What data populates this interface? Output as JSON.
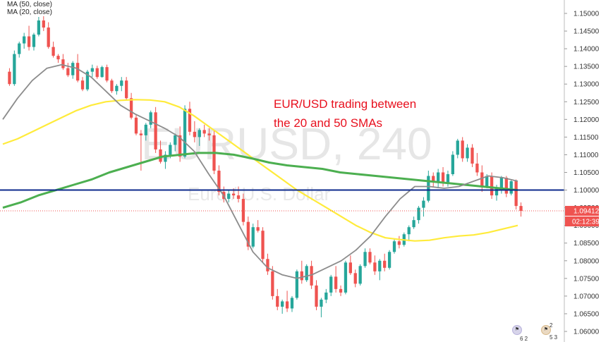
{
  "indicators": {
    "ma50_label": "MA (50, close)",
    "ma20_label": "MA (20, close)"
  },
  "annotation": {
    "line1": "EUR/USD trading between",
    "line2": "the 20 and 50 SMAs"
  },
  "watermark": {
    "symbol": "EURUSD, 240",
    "description": "Euro / U.S. Dollar"
  },
  "badges": {
    "price": "1.09412",
    "countdown": "02:12:39"
  },
  "events": [
    {
      "icon": "flag-icon",
      "count": "2"
    },
    {
      "icon": "flag-icon",
      "count": "6 2"
    },
    {
      "icon": "flag-icon",
      "count": "5 3"
    }
  ],
  "colors": {
    "bull": "#26a69a",
    "bear": "#ef5350",
    "ma20": "#8c8c8c",
    "ma50": "#4caf50",
    "ma_yellow": "#ffeb3b",
    "level_line": "#0d2a8c",
    "price_badge": "#ef5350",
    "countdown_badge": "#ef5350",
    "annotation": "#e8101e"
  },
  "chart_data": {
    "type": "candlestick",
    "symbol": "EURUSD",
    "timeframe": "240",
    "ylim": [
      1.0575,
      1.1535
    ],
    "y_ticks": [
      "1.15000",
      "1.14500",
      "1.14000",
      "1.13500",
      "1.13000",
      "1.12500",
      "1.12000",
      "1.11500",
      "1.11000",
      "1.10500",
      "1.10000",
      "1.09500",
      "1.09000",
      "1.08500",
      "1.08000",
      "1.07500",
      "1.07000",
      "1.06500",
      "1.06000"
    ],
    "grid": false,
    "horizontal_level": 1.1,
    "last_price": 1.09412,
    "ohlc": [
      [
        1.1335,
        1.1345,
        1.1295,
        1.13
      ],
      [
        1.13,
        1.1395,
        1.1295,
        1.1385
      ],
      [
        1.1385,
        1.142,
        1.1375,
        1.1415
      ],
      [
        1.1415,
        1.1445,
        1.14,
        1.1435
      ],
      [
        1.1435,
        1.1465,
        1.1395,
        1.1405
      ],
      [
        1.1405,
        1.1445,
        1.1395,
        1.144
      ],
      [
        1.144,
        1.149,
        1.1435,
        1.148
      ],
      [
        1.148,
        1.1492,
        1.145,
        1.146
      ],
      [
        1.146,
        1.1475,
        1.14,
        1.1405
      ],
      [
        1.1405,
        1.142,
        1.1375,
        1.138
      ],
      [
        1.138,
        1.1385,
        1.136,
        1.137
      ],
      [
        1.137,
        1.1385,
        1.134,
        1.1345
      ],
      [
        1.1345,
        1.136,
        1.132,
        1.1325
      ],
      [
        1.1325,
        1.1365,
        1.1315,
        1.136
      ],
      [
        1.136,
        1.1385,
        1.1305,
        1.131
      ],
      [
        1.131,
        1.132,
        1.128,
        1.1285
      ],
      [
        1.1285,
        1.134,
        1.128,
        1.1335
      ],
      [
        1.1335,
        1.1355,
        1.132,
        1.1345
      ],
      [
        1.1345,
        1.1352,
        1.1315,
        1.132
      ],
      [
        1.132,
        1.1352,
        1.1318,
        1.1348
      ],
      [
        1.1348,
        1.1355,
        1.1305,
        1.131
      ],
      [
        1.131,
        1.1315,
        1.1275,
        1.128
      ],
      [
        1.128,
        1.13,
        1.127,
        1.1295
      ],
      [
        1.1295,
        1.132,
        1.128,
        1.131
      ],
      [
        1.131,
        1.132,
        1.1255,
        1.126
      ],
      [
        1.126,
        1.1275,
        1.12,
        1.1205
      ],
      [
        1.1205,
        1.1215,
        1.1155,
        1.116
      ],
      [
        1.116,
        1.117,
        1.1055,
        1.1155
      ],
      [
        1.1155,
        1.119,
        1.114,
        1.1185
      ],
      [
        1.1185,
        1.1225,
        1.1175,
        1.122
      ],
      [
        1.122,
        1.1235,
        1.1105,
        1.1115
      ],
      [
        1.1115,
        1.114,
        1.1075,
        1.108
      ],
      [
        1.108,
        1.111,
        1.106,
        1.11
      ],
      [
        1.11,
        1.1135,
        1.109,
        1.1128
      ],
      [
        1.1128,
        1.116,
        1.111,
        1.1155
      ],
      [
        1.1155,
        1.118,
        1.108,
        1.1095
      ],
      [
        1.1095,
        1.124,
        1.109,
        1.123
      ],
      [
        1.123,
        1.125,
        1.1155,
        1.1165
      ],
      [
        1.1165,
        1.1195,
        1.1135,
        1.115
      ],
      [
        1.115,
        1.1175,
        1.1125,
        1.117
      ],
      [
        1.117,
        1.1185,
        1.115,
        1.116
      ],
      [
        1.116,
        1.1175,
        1.114,
        1.1155
      ],
      [
        1.1155,
        1.117,
        1.1045,
        1.1055
      ],
      [
        1.1055,
        1.107,
        1.0985,
        1.0995
      ],
      [
        1.0995,
        1.101,
        1.0965,
        1.0975
      ],
      [
        1.0975,
        1.1,
        1.0965,
        1.099
      ],
      [
        1.099,
        1.1005,
        1.0975,
        1.0985
      ],
      [
        1.0985,
        1.101,
        1.0965,
        1.0975
      ],
      [
        1.0975,
        1.099,
        1.09,
        1.091
      ],
      [
        1.091,
        1.0925,
        1.083,
        1.084
      ],
      [
        1.084,
        1.0905,
        1.0835,
        1.0895
      ],
      [
        1.0895,
        1.0915,
        1.088,
        1.0885
      ],
      [
        1.0885,
        1.0895,
        1.0795,
        1.0805
      ],
      [
        1.0805,
        1.082,
        1.076,
        1.077
      ],
      [
        1.077,
        1.0785,
        1.069,
        1.07
      ],
      [
        1.07,
        1.072,
        1.066,
        1.067
      ],
      [
        1.067,
        1.069,
        1.065,
        1.0685
      ],
      [
        1.0685,
        1.0715,
        1.0655,
        1.0665
      ],
      [
        1.0665,
        1.07,
        1.0655,
        1.0695
      ],
      [
        1.0695,
        1.0775,
        1.069,
        1.077
      ],
      [
        1.077,
        1.08,
        1.0735,
        1.0745
      ],
      [
        1.0745,
        1.079,
        1.074,
        1.0785
      ],
      [
        1.0785,
        1.08,
        1.072,
        1.073
      ],
      [
        1.073,
        1.0745,
        1.066,
        1.067
      ],
      [
        1.067,
        1.0695,
        1.064,
        1.069
      ],
      [
        1.069,
        1.072,
        1.068,
        1.071
      ],
      [
        1.071,
        1.076,
        1.07,
        1.0755
      ],
      [
        1.0755,
        1.0785,
        1.071,
        1.072
      ],
      [
        1.072,
        1.073,
        1.07,
        1.071
      ],
      [
        1.071,
        1.08,
        1.0705,
        1.0795
      ],
      [
        1.0795,
        1.0815,
        1.076,
        1.0765
      ],
      [
        1.0765,
        1.0775,
        1.0725,
        1.0735
      ],
      [
        1.0735,
        1.079,
        1.073,
        1.0785
      ],
      [
        1.0785,
        1.0835,
        1.078,
        1.0825
      ],
      [
        1.0825,
        1.0835,
        1.079,
        1.0795
      ],
      [
        1.0795,
        1.0815,
        1.076,
        1.077
      ],
      [
        1.077,
        1.0805,
        1.0745,
        1.08
      ],
      [
        1.08,
        1.082,
        1.077,
        1.078
      ],
      [
        1.078,
        1.083,
        1.0775,
        1.0825
      ],
      [
        1.0825,
        1.086,
        1.082,
        1.0855
      ],
      [
        1.0855,
        1.087,
        1.0835,
        1.0845
      ],
      [
        1.0845,
        1.088,
        1.084,
        1.0875
      ],
      [
        1.0875,
        1.09,
        1.0855,
        1.0895
      ],
      [
        1.0895,
        1.0925,
        1.089,
        1.0915
      ],
      [
        1.0915,
        1.0955,
        1.0905,
        1.095
      ],
      [
        1.095,
        1.098,
        1.0925,
        1.097
      ],
      [
        1.097,
        1.1055,
        1.0965,
        1.104
      ],
      [
        1.104,
        1.105,
        1.101,
        1.1025
      ],
      [
        1.1025,
        1.106,
        1.1005,
        1.105
      ],
      [
        1.105,
        1.1065,
        1.101,
        1.102
      ],
      [
        1.102,
        1.1055,
        1.101,
        1.1045
      ],
      [
        1.1045,
        1.111,
        1.104,
        1.11
      ],
      [
        1.11,
        1.1145,
        1.109,
        1.114
      ],
      [
        1.114,
        1.115,
        1.108,
        1.109
      ],
      [
        1.109,
        1.113,
        1.108,
        1.112
      ],
      [
        1.112,
        1.113,
        1.1065,
        1.1075
      ],
      [
        1.1075,
        1.1105,
        1.104,
        1.105
      ],
      [
        1.105,
        1.107,
        1.0995,
        1.101
      ],
      [
        1.101,
        1.1045,
        1.1005,
        1.104
      ],
      [
        1.104,
        1.105,
        1.0975,
        1.0985
      ],
      [
        1.0985,
        1.1015,
        1.097,
        1.1005
      ],
      [
        1.1005,
        1.104,
        1.099,
        1.1035
      ],
      [
        1.1035,
        1.104,
        1.098,
        1.099
      ],
      [
        1.099,
        1.103,
        1.0985,
        1.1025
      ],
      [
        1.1025,
        1.103,
        1.0945,
        1.0955
      ],
      [
        1.0955,
        1.0965,
        1.0925,
        1.0941
      ]
    ],
    "ma50_values": [
      1.113,
      1.1145,
      1.1165,
      1.1185,
      1.1205,
      1.1225,
      1.124,
      1.125,
      1.1254,
      1.1256,
      1.1255,
      1.125,
      1.1235,
      1.121,
      1.118,
      1.115,
      1.112,
      1.109,
      1.106,
      1.103,
      1.1,
      1.0975,
      1.095,
      1.0925,
      1.09,
      1.088,
      1.0865,
      1.086,
      1.0856,
      1.0858,
      1.0865,
      1.087,
      1.0873,
      1.088,
      1.089,
      1.09
    ],
    "ma20_values": [
      1.12,
      1.126,
      1.131,
      1.1345,
      1.1355,
      1.1345,
      1.132,
      1.128,
      1.124,
      1.1215,
      1.1195,
      1.1175,
      1.115,
      1.111,
      1.1045,
      1.0985,
      1.0905,
      1.0825,
      1.078,
      1.076,
      1.075,
      1.076,
      1.078,
      1.08,
      1.083,
      1.087,
      1.0925,
      1.0975,
      1.101,
      1.101,
      1.1005,
      1.101,
      1.1025,
      1.104,
      1.1035,
      1.1025
    ],
    "ma_slow_values": [
      1.095,
      1.0965,
      1.0985,
      1.1,
      1.1015,
      1.103,
      1.105,
      1.1065,
      1.108,
      1.1095,
      1.11,
      1.1105,
      1.1105,
      1.11,
      1.109,
      1.1078,
      1.107,
      1.1065,
      1.106,
      1.105,
      1.1045,
      1.104,
      1.1035,
      1.103,
      1.1025,
      1.102,
      1.1015,
      1.101,
      1.1005,
      1.1
    ]
  }
}
